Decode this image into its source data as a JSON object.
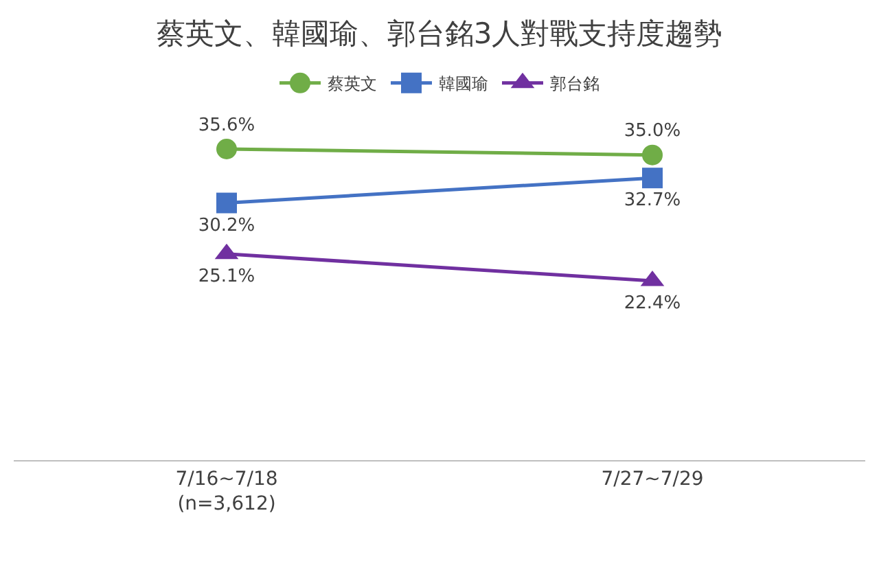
{
  "chart_data": {
    "type": "line",
    "title": "蔡英文、韓國瑜、郭台銘3人對戰支持度趨勢",
    "categories": [
      "7/16~7/18\n(n=3,612)",
      "7/27~7/29"
    ],
    "series": [
      {
        "name": "蔡英文",
        "color": "#70ad47",
        "values": [
          35.6,
          35.0
        ],
        "value_labels": [
          "35.6%",
          "35.0%"
        ],
        "marker": "circle"
      },
      {
        "name": "韓國瑜",
        "color": "#4472c4",
        "values": [
          30.2,
          32.7
        ],
        "value_labels": [
          "30.2%",
          "32.7%"
        ],
        "marker": "square"
      },
      {
        "name": "郭台銘",
        "color": "#7030a0",
        "values": [
          25.1,
          22.4
        ],
        "value_labels": [
          "25.1%",
          "22.4%"
        ],
        "marker": "triangle"
      }
    ],
    "tick_labels": "x",
    "legend": "top",
    "line_style": "solid"
  }
}
